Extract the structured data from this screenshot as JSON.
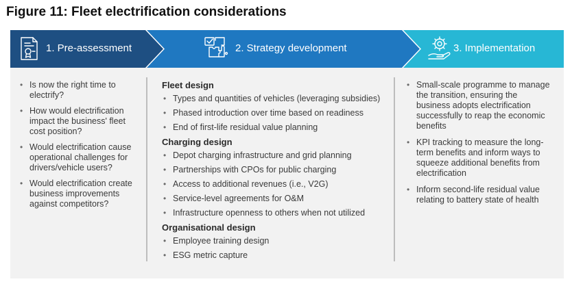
{
  "title": "Figure 11: Fleet electrification considerations",
  "colors": {
    "step1": "#1e4f82",
    "step2": "#1f78c1",
    "step3": "#27b7d5",
    "panel": "#f2f2f2"
  },
  "steps": [
    {
      "label": "1. Pre-assessment",
      "icon": "document-certificate-icon"
    },
    {
      "label": "2. Strategy development",
      "icon": "puzzle-board-icon"
    },
    {
      "label": "3. Implementation",
      "icon": "gear-in-hand-icon"
    }
  ],
  "pre_assessment": {
    "items": [
      "Is now the right time to electrify?",
      "How would electrification impact the business' fleet cost position?",
      "Would electrification cause operational challenges for drivers/vehicle users?",
      "Would electrification create business improvements against competitors?"
    ]
  },
  "strategy": {
    "sections": [
      {
        "heading": "Fleet design",
        "items": [
          "Types and quantities of vehicles (leveraging subsidies)",
          "Phased introduction over time based on readiness",
          "End of first-life residual value planning"
        ]
      },
      {
        "heading": "Charging design",
        "items": [
          "Depot charging infrastructure and grid planning",
          "Partnerships with CPOs for public charging",
          "Access to additional revenues (i.e., V2G)",
          "Service-level agreements for O&M",
          "Infrastructure openness to others when not utilized"
        ]
      },
      {
        "heading": "Organisational design",
        "items": [
          "Employee training design",
          "ESG metric capture"
        ]
      }
    ]
  },
  "implementation": {
    "items": [
      "Small-scale programme to manage the transition, ensuring the business adopts electrification successfully to reap the economic benefits",
      "KPI tracking to measure the long-term benefits and inform ways to squeeze additional benefits from electrification",
      "Inform second-life residual value relating to battery state of health"
    ]
  }
}
